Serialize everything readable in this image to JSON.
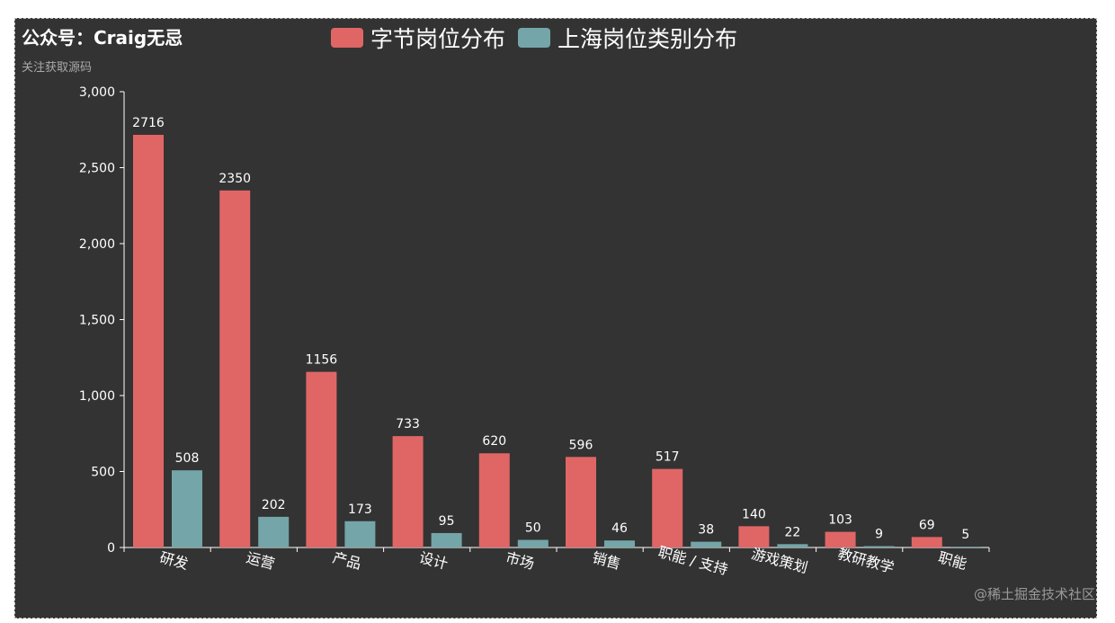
{
  "title": "公众号：Craig无忌",
  "subtitle": "关注获取源码",
  "watermark": "@稀土掘金技术社区",
  "colors": {
    "background": "#333333",
    "series1": "#e06666",
    "series2": "#74a5a8",
    "axis": "#ffffff"
  },
  "chart_data": {
    "type": "bar",
    "categories": [
      "研发",
      "运营",
      "产品",
      "设计",
      "市场",
      "销售",
      "职能 / 支持",
      "游戏策划",
      "教研教学",
      "职能"
    ],
    "series": [
      {
        "name": "字节岗位分布",
        "values": [
          2716,
          2350,
          1156,
          733,
          620,
          596,
          517,
          140,
          103,
          69
        ]
      },
      {
        "name": "上海岗位类别分布",
        "values": [
          508,
          202,
          173,
          95,
          50,
          46,
          38,
          22,
          9,
          5
        ]
      }
    ],
    "ylim": [
      0,
      3000
    ],
    "yticks": [
      "0",
      "500",
      "1,000",
      "1,500",
      "2,000",
      "2,500",
      "3,000"
    ],
    "xlabel": "",
    "ylabel": "",
    "legend": "top-center",
    "grid": false
  }
}
